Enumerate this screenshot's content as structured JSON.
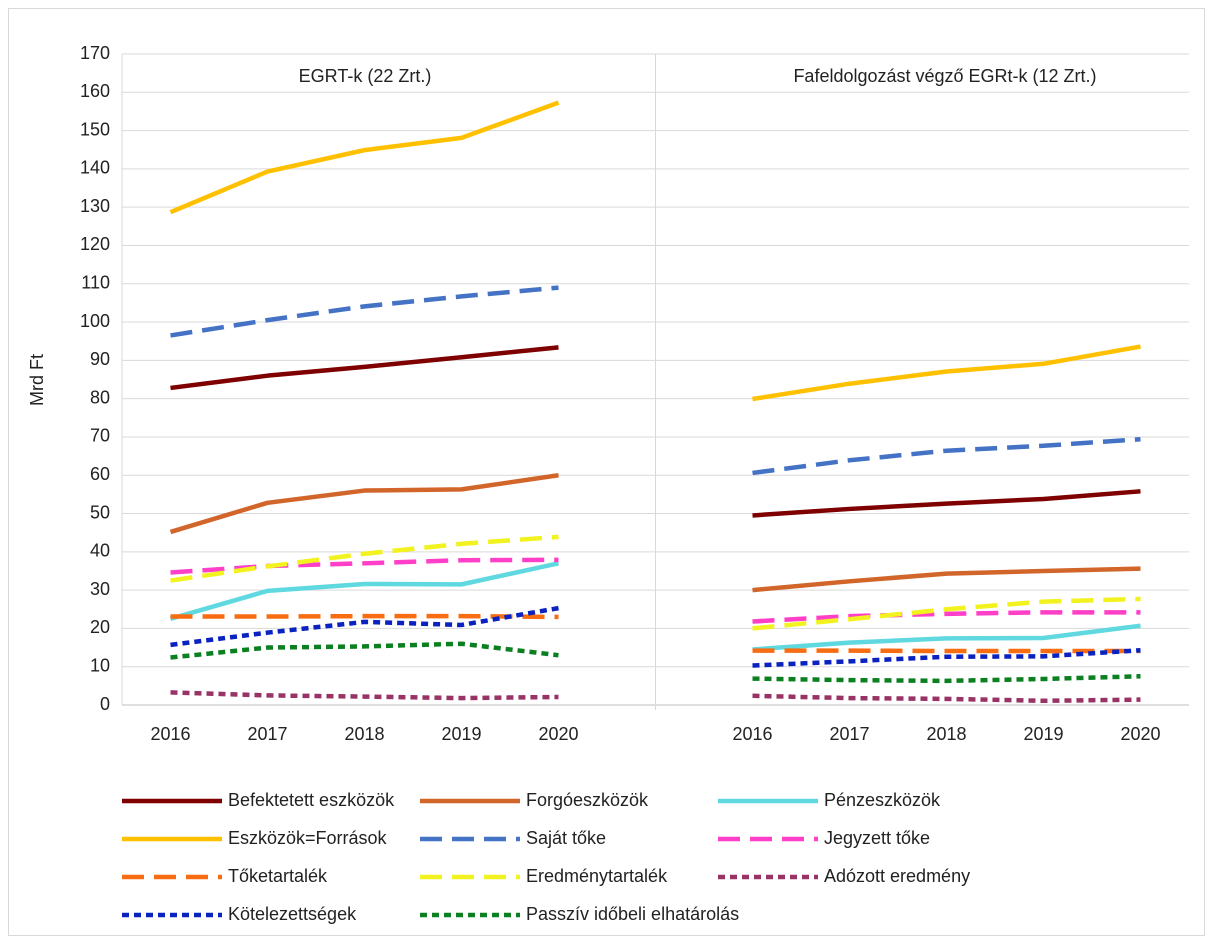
{
  "chart_data": {
    "type": "line",
    "ylabel": "Mrd Ft",
    "annotations": [
      "EGRT-k (22 Zrt.)",
      "Fafeldolgozást végző EGRt-k (12 Zrt.)"
    ],
    "categories": [
      "2016",
      "2017",
      "2018",
      "2019",
      "2020",
      null,
      "2016",
      "2017",
      "2018",
      "2019",
      "2020"
    ],
    "ylim": [
      0,
      170
    ],
    "yticks": [
      0,
      10,
      20,
      30,
      40,
      50,
      60,
      70,
      80,
      90,
      100,
      110,
      120,
      130,
      140,
      150,
      160,
      170
    ],
    "grid": true,
    "legend": "bottom",
    "series": [
      {
        "name": "Befektetett eszközök",
        "color": "#7f0000",
        "dash": "solid",
        "values": [
          82.8,
          86,
          88.3,
          90.8,
          93.4,
          null,
          49.5,
          51.2,
          52.6,
          53.8,
          55.8
        ]
      },
      {
        "name": "Forgóeszközök",
        "color": "#d2652a",
        "dash": "solid",
        "values": [
          45.2,
          52.8,
          56,
          56.3,
          60,
          null,
          30,
          32.3,
          34.3,
          35,
          35.6
        ]
      },
      {
        "name": "Pénzeszközök",
        "color": "#5fd9df",
        "dash": "solid",
        "values": [
          22.5,
          29.8,
          31.6,
          31.5,
          37,
          null,
          14.5,
          16.3,
          17.4,
          17.5,
          20.7
        ]
      },
      {
        "name": "Eszközök=Források",
        "color": "#ffc000",
        "dash": "solid",
        "values": [
          128.7,
          139.3,
          144.9,
          148.1,
          157.3,
          null,
          79.9,
          83.9,
          87.1,
          89.1,
          93.6
        ]
      },
      {
        "name": "Saját tőke",
        "color": "#4472c4",
        "dash": "long",
        "values": [
          96.5,
          100.5,
          104.1,
          106.7,
          109,
          null,
          60.6,
          63.9,
          66.4,
          67.7,
          69.4
        ]
      },
      {
        "name": "Jegyzett tőke",
        "color": "#ff3fc8",
        "dash": "long",
        "values": [
          34.6,
          36.3,
          37,
          37.8,
          37.9,
          null,
          21.8,
          23.2,
          23.8,
          24.2,
          24.2
        ]
      },
      {
        "name": "Tőketartalék",
        "color": "#f86c12",
        "dash": "long",
        "values": [
          23.1,
          23.1,
          23.2,
          23.2,
          23,
          null,
          14.2,
          14.2,
          14.1,
          14.1,
          14.1
        ]
      },
      {
        "name": "Eredménytartalék",
        "color": "#f2f21e",
        "dash": "long",
        "values": [
          32.5,
          36.2,
          39.5,
          42.1,
          43.9,
          null,
          20,
          22.4,
          25,
          27,
          27.7
        ]
      },
      {
        "name": "Adózott eredmény",
        "color": "#993366",
        "dash": "short",
        "values": [
          3.3,
          2.5,
          2.2,
          1.8,
          2.1,
          null,
          2.4,
          1.8,
          1.6,
          1.1,
          1.4
        ]
      },
      {
        "name": "Kötelezettségek",
        "color": "#0a22c0",
        "dash": "short",
        "values": [
          15.7,
          18.9,
          21.7,
          20.9,
          25.3,
          null,
          10.3,
          11.4,
          12.6,
          12.7,
          14.3
        ]
      },
      {
        "name": "Passzív időbeli elhatárolás",
        "color": "#0a8020",
        "dash": "short",
        "values": [
          12.4,
          15,
          15.3,
          16,
          13,
          null,
          6.9,
          6.5,
          6.3,
          6.8,
          7.5
        ]
      }
    ]
  }
}
